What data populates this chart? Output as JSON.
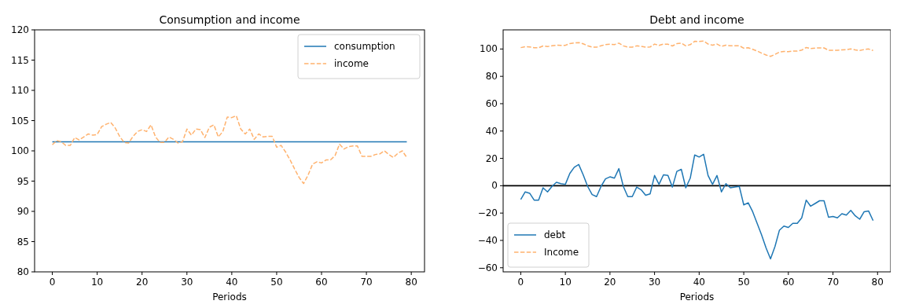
{
  "chart_data": [
    {
      "type": "line",
      "title": "Consumption and income",
      "xlabel": "Periods",
      "xlim": [
        -3.95,
        82.95
      ],
      "xticks": [
        0,
        10,
        20,
        30,
        40,
        50,
        60,
        70,
        80
      ],
      "ylim": [
        80,
        120
      ],
      "yticks": [
        80,
        85,
        90,
        95,
        100,
        105,
        110,
        115,
        120
      ],
      "legend": "top right",
      "grid": false,
      "series": [
        {
          "name": "consumption",
          "color": "#1f77b4",
          "line_style": "solid",
          "x": [
            0,
            79
          ],
          "values": [
            101.5,
            101.5
          ]
        },
        {
          "name": "income",
          "color": "#ffb26e",
          "line_style": "dashed",
          "x": [
            0,
            1,
            2,
            3,
            4,
            5,
            6,
            7,
            8,
            9,
            10,
            11,
            12,
            13,
            14,
            15,
            16,
            17,
            18,
            19,
            20,
            21,
            22,
            23,
            24,
            25,
            26,
            27,
            28,
            29,
            30,
            31,
            32,
            33,
            34,
            35,
            36,
            37,
            38,
            39,
            40,
            41,
            42,
            43,
            44,
            45,
            46,
            47,
            48,
            49,
            50,
            51,
            52,
            53,
            54,
            55,
            56,
            57,
            58,
            59,
            60,
            61,
            62,
            63,
            64,
            65,
            66,
            67,
            68,
            69,
            70,
            71,
            72,
            73,
            74,
            75,
            76,
            77,
            78,
            79
          ],
          "values": [
            101,
            101.7,
            101.5,
            100.9,
            100.9,
            102.2,
            101.8,
            102.3,
            102.8,
            102.6,
            102.7,
            104,
            104.4,
            104.7,
            103.8,
            102.4,
            101.4,
            101.3,
            102.4,
            103.2,
            103.5,
            103.2,
            104.3,
            102.3,
            101.4,
            101.4,
            102.3,
            101.9,
            101.3,
            101.5,
            103.6,
            102.6,
            103.6,
            103.5,
            102.2,
            103.9,
            104.3,
            102.3,
            103.2,
            105.6,
            105.5,
            105.8,
            103.6,
            102.8,
            103.6,
            101.9,
            102.8,
            102.3,
            102.4,
            102.4,
            100.6,
            100.9,
            99.8,
            98.5,
            97,
            95.6,
            94.6,
            96,
            97.8,
            98.2,
            98,
            98.5,
            98.5,
            99.2,
            101.1,
            100.3,
            100.7,
            100.8,
            100.8,
            99.1,
            99.1,
            99.1,
            99.4,
            99.5,
            100,
            99.4,
            98.9,
            99.6,
            100,
            98.9
          ]
        }
      ]
    },
    {
      "type": "line",
      "title": "Debt and income",
      "xlabel": "Periods",
      "xlim": [
        -3.95,
        82.95
      ],
      "xticks": [
        0,
        10,
        20,
        30,
        40,
        50,
        60,
        70,
        80
      ],
      "ylim": [
        -63,
        114
      ],
      "yticks": [
        {
          "value": -60,
          "label": "−60"
        },
        {
          "value": -40,
          "label": "−40"
        },
        {
          "value": -20,
          "label": "−20"
        },
        0,
        20,
        40,
        60,
        80,
        100
      ],
      "legend": "bottom left",
      "grid": false,
      "ref_lines": [
        {
          "axis": "y",
          "value": 0,
          "color": "#000000",
          "line_style": "solid"
        }
      ],
      "series": [
        {
          "name": "debt",
          "color": "#1f77b4",
          "line_style": "solid",
          "x": [
            0,
            1,
            2,
            3,
            4,
            5,
            6,
            7,
            8,
            9,
            10,
            11,
            12,
            13,
            14,
            15,
            16,
            17,
            18,
            19,
            20,
            21,
            22,
            23,
            24,
            25,
            26,
            27,
            28,
            29,
            30,
            31,
            32,
            33,
            34,
            35,
            36,
            37,
            38,
            39,
            40,
            41,
            42,
            43,
            44,
            45,
            46,
            47,
            48,
            49,
            50,
            51,
            52,
            53,
            54,
            55,
            56,
            57,
            58,
            59,
            60,
            61,
            62,
            63,
            64,
            65,
            66,
            67,
            68,
            69,
            70,
            71,
            72,
            73,
            74,
            75,
            76,
            77,
            78,
            79
          ],
          "values": [
            -10,
            -4.5,
            -5.5,
            -10.5,
            -10.5,
            -1.5,
            -4.5,
            -0.5,
            2.5,
            1.5,
            1,
            9,
            13.5,
            15.5,
            8,
            -0.5,
            -6.5,
            -8,
            -0.5,
            5,
            6.5,
            5.5,
            12.5,
            -0.5,
            -8,
            -8,
            -1,
            -3,
            -7,
            -6,
            7.5,
            1,
            8,
            7.5,
            -1,
            10.5,
            12,
            -1.5,
            5.5,
            22.5,
            21,
            23,
            7.5,
            1,
            7.5,
            -4.5,
            1.5,
            -1.5,
            -1,
            -0.5,
            -14,
            -12.5,
            -19,
            -27.5,
            -36,
            -45.5,
            -53.5,
            -44.5,
            -32.5,
            -29.5,
            -30.5,
            -27.5,
            -27.5,
            -23.5,
            -10.5,
            -15,
            -13,
            -11,
            -11,
            -23,
            -22.5,
            -23.5,
            -20.5,
            -21.5,
            -18,
            -22,
            -24.5,
            -19,
            -18.5,
            -25.5
          ]
        },
        {
          "name": "Income",
          "color": "#ffb26e",
          "line_style": "dashed",
          "x": [
            0,
            1,
            2,
            3,
            4,
            5,
            6,
            7,
            8,
            9,
            10,
            11,
            12,
            13,
            14,
            15,
            16,
            17,
            18,
            19,
            20,
            21,
            22,
            23,
            24,
            25,
            26,
            27,
            28,
            29,
            30,
            31,
            32,
            33,
            34,
            35,
            36,
            37,
            38,
            39,
            40,
            41,
            42,
            43,
            44,
            45,
            46,
            47,
            48,
            49,
            50,
            51,
            52,
            53,
            54,
            55,
            56,
            57,
            58,
            59,
            60,
            61,
            62,
            63,
            64,
            65,
            66,
            67,
            68,
            69,
            70,
            71,
            72,
            73,
            74,
            75,
            76,
            77,
            78,
            79
          ],
          "values": [
            101,
            101.7,
            101.5,
            100.9,
            100.9,
            102.2,
            101.8,
            102.3,
            102.8,
            102.6,
            102.7,
            104,
            104.4,
            104.7,
            103.8,
            102.4,
            101.4,
            101.3,
            102.4,
            103.2,
            103.5,
            103.2,
            104.3,
            102.3,
            101.4,
            101.4,
            102.3,
            101.9,
            101.3,
            101.5,
            103.6,
            102.6,
            103.6,
            103.5,
            102.2,
            103.9,
            104.3,
            102.3,
            103.2,
            105.6,
            105.5,
            105.8,
            103.6,
            102.8,
            103.6,
            101.9,
            102.8,
            102.3,
            102.4,
            102.4,
            100.6,
            100.9,
            99.8,
            98.5,
            97,
            95.6,
            94.6,
            96,
            97.8,
            98.2,
            98,
            98.5,
            98.5,
            99.2,
            101.1,
            100.3,
            100.7,
            100.8,
            100.8,
            99.1,
            99.1,
            99.1,
            99.4,
            99.5,
            100,
            99.4,
            98.9,
            99.6,
            100,
            98.9
          ]
        }
      ]
    }
  ]
}
